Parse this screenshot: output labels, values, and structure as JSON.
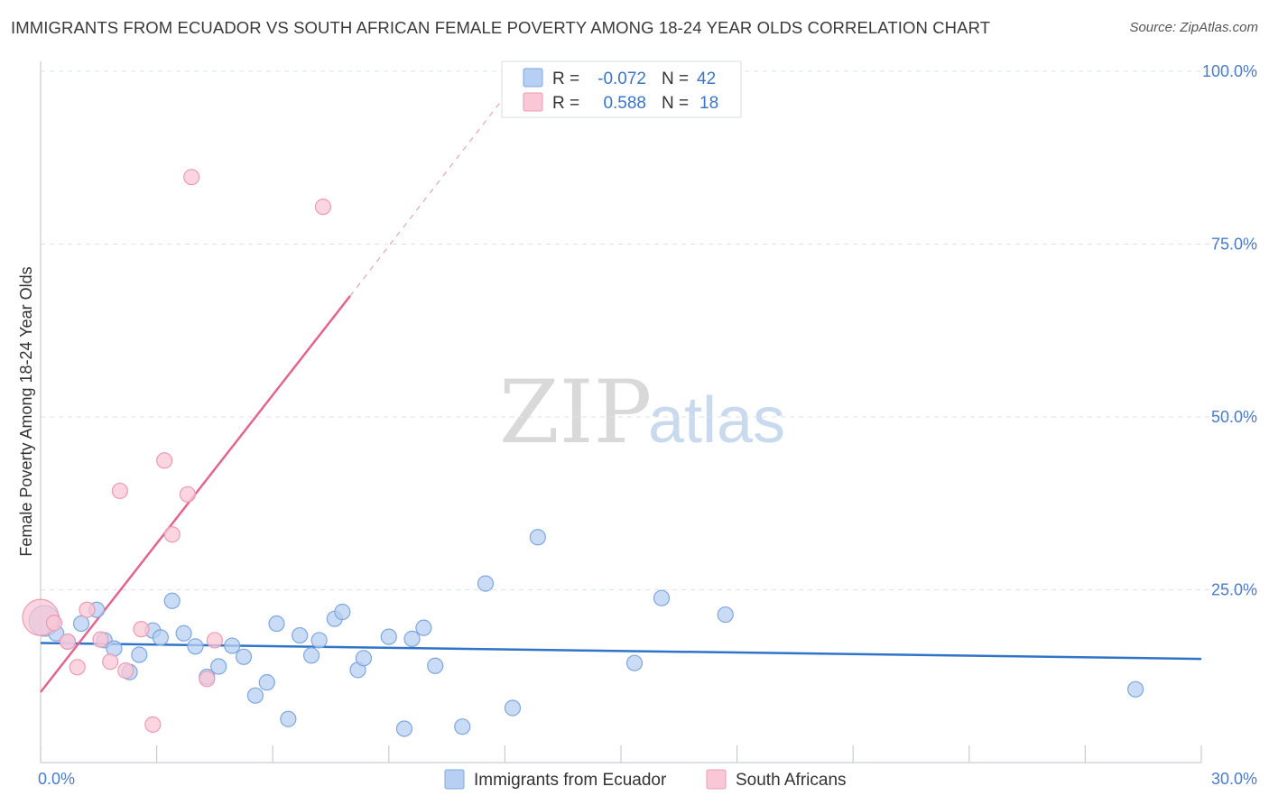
{
  "title": "IMMIGRANTS FROM ECUADOR VS SOUTH AFRICAN FEMALE POVERTY AMONG 18-24 YEAR OLDS CORRELATION CHART",
  "source": "Source: ZipAtlas.com",
  "watermark": {
    "zip": "ZIP",
    "atlas": "atlas"
  },
  "colors": {
    "blue_fill": "#b7cff2",
    "blue_stroke": "#7fa7dd",
    "blue_line": "#2f74c8",
    "pink_fill": "#f9c7d6",
    "pink_stroke": "#ec9bb5",
    "pink_line": "#e4648f",
    "grid": "#dde3ea",
    "tick_text": "#4a7cc9"
  },
  "legend": {
    "rows": [
      {
        "r_label": "R =",
        "r_value": "-0.072",
        "n_label": "N =",
        "n_value": "42",
        "series": "blue"
      },
      {
        "r_label": "R =",
        "r_value": "0.588",
        "n_label": "N =",
        "n_value": "18",
        "series": "pink"
      }
    ]
  },
  "chart_data": {
    "type": "scatter",
    "title": "IMMIGRANTS FROM ECUADOR VS SOUTH AFRICAN FEMALE POVERTY AMONG 18-24 YEAR OLDS CORRELATION CHART",
    "xlabel": "",
    "ylabel": "Female Poverty Among 18-24 Year Olds",
    "xlim": [
      0,
      30
    ],
    "ylim": [
      0,
      100
    ],
    "x_tick_labels": [
      "0.0%",
      "30.0%"
    ],
    "y_ticks": [
      25,
      50,
      75,
      100
    ],
    "y_tick_labels": [
      "25.0%",
      "50.0%",
      "75.0%",
      "100.0%"
    ],
    "grid": true,
    "series": [
      {
        "name": "Immigrants from Ecuador",
        "color": "blue",
        "r": -0.072,
        "n": 42,
        "trendline": {
          "x": [
            0,
            30
          ],
          "y": [
            17.3,
            15.0
          ],
          "dashed_extension": false
        },
        "points": [
          [
            0.1,
            20.5
          ],
          [
            0.4,
            18.7
          ],
          [
            0.7,
            17.5
          ],
          [
            1.05,
            20.1
          ],
          [
            1.45,
            22.1
          ],
          [
            1.65,
            17.7
          ],
          [
            1.9,
            16.5
          ],
          [
            2.3,
            13.1
          ],
          [
            2.55,
            15.6
          ],
          [
            2.9,
            19.1
          ],
          [
            3.1,
            18.1
          ],
          [
            3.4,
            23.4
          ],
          [
            3.7,
            18.7
          ],
          [
            4.0,
            16.8
          ],
          [
            4.3,
            12.4
          ],
          [
            4.6,
            13.9
          ],
          [
            4.95,
            16.9
          ],
          [
            5.25,
            15.3
          ],
          [
            5.55,
            9.7
          ],
          [
            5.85,
            11.6
          ],
          [
            6.1,
            20.1
          ],
          [
            6.4,
            6.3
          ],
          [
            6.7,
            18.4
          ],
          [
            7.0,
            15.5
          ],
          [
            7.2,
            17.7
          ],
          [
            7.6,
            20.8
          ],
          [
            7.8,
            21.8
          ],
          [
            8.2,
            13.4
          ],
          [
            8.35,
            15.1
          ],
          [
            9.0,
            18.2
          ],
          [
            9.4,
            4.9
          ],
          [
            9.6,
            17.9
          ],
          [
            9.9,
            19.5
          ],
          [
            10.2,
            14.0
          ],
          [
            10.9,
            5.2
          ],
          [
            11.5,
            25.9
          ],
          [
            12.2,
            7.9
          ],
          [
            12.85,
            32.6
          ],
          [
            15.35,
            14.4
          ],
          [
            16.05,
            23.8
          ],
          [
            17.7,
            21.4
          ],
          [
            28.3,
            10.6
          ]
        ]
      },
      {
        "name": "South Africans",
        "color": "pink",
        "r": 0.588,
        "n": 18,
        "trendline": {
          "x": [
            0,
            8.0
          ],
          "y": [
            10.2,
            67.5
          ],
          "dashed_to": [
            12.5,
            100
          ]
        },
        "points": [
          [
            0.0,
            21.0
          ],
          [
            0.35,
            20.2
          ],
          [
            0.7,
            17.5
          ],
          [
            0.95,
            13.8
          ],
          [
            1.2,
            22.1
          ],
          [
            1.55,
            17.8
          ],
          [
            1.8,
            14.6
          ],
          [
            2.05,
            39.3
          ],
          [
            2.2,
            13.3
          ],
          [
            2.6,
            19.3
          ],
          [
            2.9,
            5.5
          ],
          [
            3.2,
            43.7
          ],
          [
            3.4,
            33.0
          ],
          [
            3.8,
            38.8
          ],
          [
            3.9,
            84.7
          ],
          [
            4.3,
            12.1
          ],
          [
            4.5,
            17.7
          ],
          [
            7.3,
            80.4
          ]
        ]
      }
    ]
  },
  "bottom_legend": {
    "items": [
      {
        "label": "Immigrants from Ecuador",
        "series": "blue"
      },
      {
        "label": "South Africans",
        "series": "pink"
      }
    ]
  }
}
